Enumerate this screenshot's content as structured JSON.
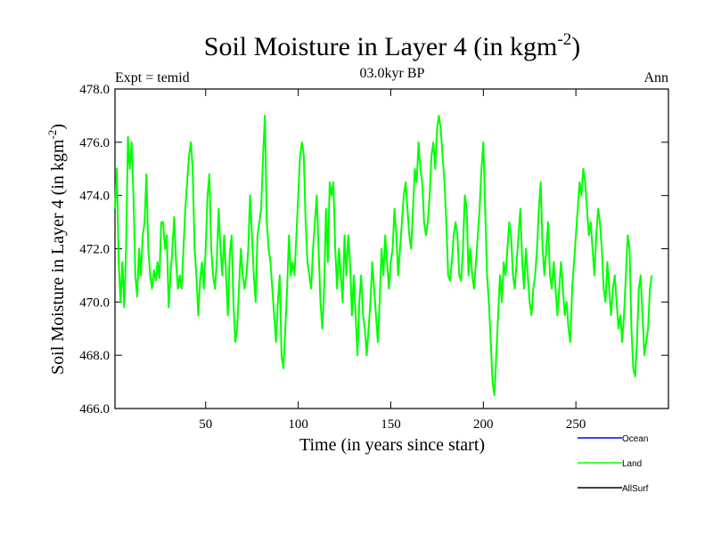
{
  "chart_data": {
    "type": "line",
    "title_main": "Soil Moisture in Layer 4 (in kgm",
    "title_sup": "-2",
    "title_close": ")",
    "subtitle": "03.0kyr BP",
    "left_note": "Expt = temid",
    "right_note": "Ann",
    "xlabel": "Time (in years since start)",
    "ylabel_main": "Soil Moisture in Layer 4 (in kgm",
    "ylabel_sup": "-2",
    "ylabel_close": ")",
    "xlim": [
      1,
      300
    ],
    "ylim": [
      466,
      478
    ],
    "x_ticks": [
      50,
      100,
      150,
      200,
      250
    ],
    "x_tick_labels": [
      "50",
      "100",
      "150",
      "200",
      "250"
    ],
    "y_ticks": [
      466,
      468,
      470,
      472,
      474,
      476,
      478
    ],
    "y_tick_labels": [
      "466.0",
      "468.0",
      "470.0",
      "472.0",
      "474.0",
      "476.0",
      "478.0"
    ],
    "legend": [
      {
        "name": "Ocean",
        "color": "#0000ff"
      },
      {
        "name": "Land",
        "color": "#00ff00"
      },
      {
        "name": "AllSurf",
        "color": "#000000"
      }
    ],
    "series": [
      {
        "name": "Land",
        "color": "#00ff00",
        "x_start": 1,
        "x_step": 1,
        "values": [
          473.5,
          475.0,
          471.5,
          470.0,
          471.5,
          469.8,
          472.0,
          476.2,
          475.0,
          476.0,
          474.0,
          471.0,
          470.2,
          472.0,
          471.0,
          472.5,
          473.0,
          474.8,
          472.0,
          471.0,
          470.5,
          471.2,
          470.8,
          471.5,
          470.9,
          473.0,
          473.0,
          472.0,
          472.5,
          469.8,
          471.0,
          472.0,
          473.2,
          471.5,
          470.5,
          471.0,
          470.5,
          472.0,
          473.5,
          474.5,
          475.5,
          476.0,
          475.0,
          472.0,
          471.0,
          469.5,
          470.8,
          471.5,
          470.5,
          472.0,
          474.0,
          474.8,
          472.0,
          471.0,
          470.5,
          471.5,
          473.5,
          472.0,
          471.0,
          472.5,
          471.0,
          469.5,
          471.8,
          472.5,
          470.0,
          468.5,
          469.0,
          470.5,
          472.0,
          471.0,
          470.5,
          471.0,
          472.0,
          474.0,
          472.5,
          471.0,
          470.0,
          472.5,
          473.0,
          473.5,
          475.5,
          477.0,
          473.0,
          472.0,
          471.5,
          470.5,
          469.5,
          468.5,
          470.0,
          471.0,
          468.0,
          467.5,
          469.0,
          470.5,
          472.5,
          471.0,
          471.5,
          471.0,
          472.5,
          474.0,
          475.5,
          476.0,
          475.5,
          473.0,
          471.5,
          471.0,
          470.5,
          472.0,
          473.0,
          474.0,
          472.0,
          470.0,
          469.0,
          470.5,
          473.5,
          471.5,
          474.5,
          474.0,
          474.5,
          472.0,
          470.5,
          472.0,
          471.0,
          470.0,
          472.5,
          471.0,
          472.5,
          471.5,
          469.5,
          471.0,
          469.5,
          468.0,
          470.0,
          471.0,
          469.5,
          469.0,
          468.0,
          469.0,
          470.0,
          471.5,
          470.5,
          469.5,
          468.5,
          470.0,
          472.0,
          471.0,
          472.5,
          471.5,
          470.5,
          471.5,
          472.0,
          473.5,
          472.5,
          471.0,
          472.0,
          473.0,
          474.0,
          474.5,
          473.5,
          472.5,
          472.0,
          473.5,
          475.0,
          474.5,
          476.0,
          475.0,
          474.5,
          473.0,
          472.5,
          473.0,
          474.0,
          475.5,
          476.0,
          475.0,
          476.5,
          477.0,
          476.5,
          475.5,
          474.5,
          473.0,
          471.0,
          470.8,
          471.5,
          472.5,
          473.0,
          472.5,
          471.0,
          470.8,
          472.0,
          474.0,
          473.5,
          471.0,
          472.0,
          471.0,
          470.5,
          471.5,
          472.5,
          473.5,
          475.0,
          476.0,
          473.5,
          471.0,
          470.0,
          468.5,
          467.0,
          466.5,
          468.0,
          469.5,
          471.0,
          470.0,
          471.5,
          471.0,
          472.0,
          473.0,
          472.5,
          471.0,
          470.5,
          471.5,
          472.5,
          473.5,
          471.5,
          470.5,
          472.0,
          471.0,
          470.0,
          469.5,
          470.5,
          471.0,
          472.0,
          473.5,
          474.5,
          472.0,
          471.0,
          472.0,
          473.0,
          471.0,
          470.5,
          471.5,
          470.5,
          469.5,
          470.5,
          471.5,
          470.5,
          469.5,
          470.0,
          469.0,
          468.5,
          470.5,
          471.5,
          472.5,
          473.5,
          474.5,
          474.0,
          475.0,
          474.5,
          473.5,
          472.5,
          473.0,
          472.0,
          471.0,
          472.5,
          473.5,
          473.0,
          472.0,
          470.5,
          470.0,
          471.5,
          470.5,
          469.5,
          470.5,
          471.0,
          470.0,
          469.0,
          469.5,
          468.5,
          469.5,
          471.0,
          472.5,
          472.0,
          469.0,
          467.5,
          467.2,
          468.5,
          470.5,
          471.0,
          469.5,
          468.0,
          468.5,
          469.0,
          470.5,
          471.0
        ]
      }
    ]
  }
}
